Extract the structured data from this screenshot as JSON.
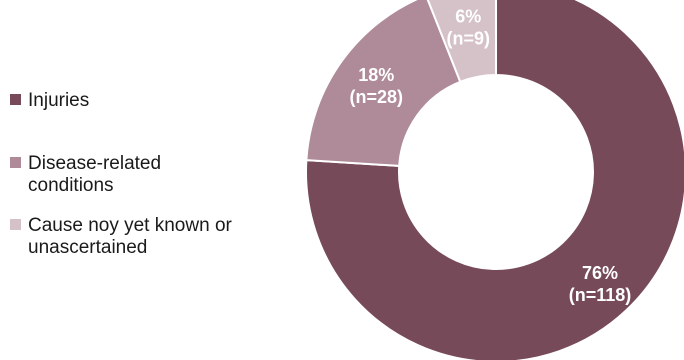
{
  "chart_data": {
    "type": "pie",
    "donut": true,
    "title": "",
    "legend_position": "left",
    "slices": [
      {
        "name": "Injuries",
        "value": 76,
        "pct_label": "76%",
        "n_label": "(n=118)",
        "color": "#774a5a"
      },
      {
        "name": "Disease-related conditions",
        "value": 18,
        "pct_label": "18%",
        "n_label": "(n=28)",
        "color": "#af8a98"
      },
      {
        "name": "Cause noy yet known or unascertained",
        "value": 6,
        "pct_label": "6%",
        "n_label": "(n=9)",
        "color": "#d5c2c9"
      }
    ]
  },
  "legend": {
    "items": [
      {
        "label_line1": "Injuries",
        "label_line2": "",
        "color": "#774a5a"
      },
      {
        "label_line1": "Disease-related",
        "label_line2": "conditions",
        "color": "#af8a98"
      },
      {
        "label_line1": "Cause noy yet known or",
        "label_line2": "unascertained",
        "color": "#d5c2c9"
      }
    ]
  }
}
